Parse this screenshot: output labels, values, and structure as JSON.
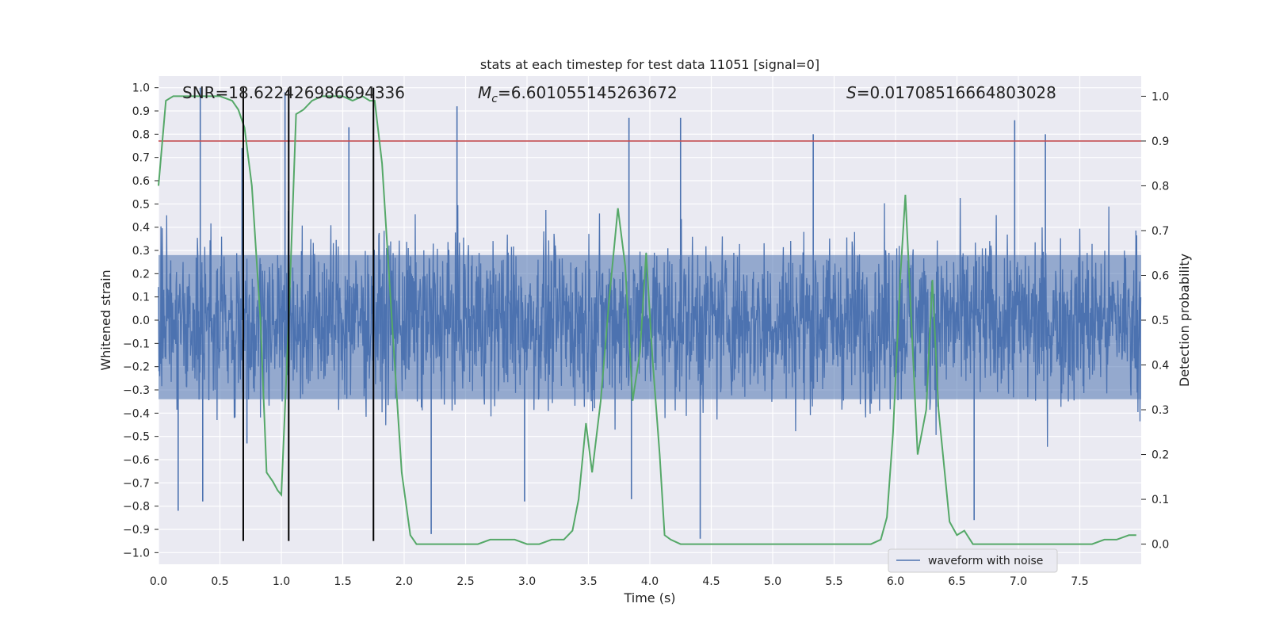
{
  "chart_data": {
    "type": "line",
    "title": "stats at each timestep for test data 11051 [signal=0]",
    "xlabel": "Time (s)",
    "ylabel_left": "Whitened strain",
    "ylabel_right": "Detection probability",
    "xlim": [
      0.0,
      8.0
    ],
    "ylim_left": [
      -1.05,
      1.05
    ],
    "ylim_right": [
      -0.045,
      1.045
    ],
    "xticks": [
      "0.0",
      "0.5",
      "1.0",
      "1.5",
      "2.0",
      "2.5",
      "3.0",
      "3.5",
      "4.0",
      "4.5",
      "5.0",
      "5.5",
      "6.0",
      "6.5",
      "7.0",
      "7.5"
    ],
    "yticks_left": [
      "1.0",
      "0.9",
      "0.8",
      "0.7",
      "0.6",
      "0.5",
      "0.4",
      "0.3",
      "0.2",
      "0.1",
      "0.0",
      "−0.1",
      "−0.2",
      "−0.3",
      "−0.4",
      "−0.5",
      "−0.6",
      "−0.7",
      "−0.8",
      "−0.9",
      "−1.0"
    ],
    "yticks_right": [
      "1.0",
      "0.9",
      "0.8",
      "0.7",
      "0.6",
      "0.5",
      "0.4",
      "0.3",
      "0.2",
      "0.1",
      "0.0"
    ],
    "annotations": {
      "snr": "SNR=18.622426986694336",
      "mc_symbol": "M",
      "mc_sub": "c",
      "mc_value": "=6.601055145263672",
      "s_symbol": "S",
      "s_value": "=0.01708516664803028"
    },
    "legend": {
      "label": "waveform with noise",
      "placement": "lower right"
    },
    "threshold": {
      "axis": "right",
      "value": 0.9,
      "color": "#c44e52"
    },
    "vertical_markers": [
      0.69,
      1.06,
      1.75
    ],
    "vertical_marker_range": [
      -0.95,
      1.0
    ],
    "series": [
      {
        "name": "waveform with noise",
        "axis": "left",
        "color": "#4c72b0",
        "kind": "noise",
        "duration": 8.0,
        "envelope": 0.36,
        "seed": 11051,
        "spikes": [
          {
            "t": 0.34,
            "v": 1.0
          },
          {
            "t": 0.68,
            "v": 0.74
          },
          {
            "t": 0.72,
            "v": -0.53
          },
          {
            "t": 1.03,
            "v": 0.98
          },
          {
            "t": 1.55,
            "v": 0.83
          },
          {
            "t": 1.75,
            "v": 0.99
          },
          {
            "t": 2.22,
            "v": -0.92
          },
          {
            "t": 2.43,
            "v": 0.92
          },
          {
            "t": 3.83,
            "v": 0.87
          },
          {
            "t": 4.25,
            "v": 0.87
          },
          {
            "t": 4.41,
            "v": -0.94
          },
          {
            "t": 5.33,
            "v": 0.8
          },
          {
            "t": 6.97,
            "v": 0.86
          },
          {
            "t": 7.22,
            "v": 0.8
          },
          {
            "t": 6.64,
            "v": -0.86
          },
          {
            "t": 0.16,
            "v": -0.82
          },
          {
            "t": 0.36,
            "v": -0.78
          },
          {
            "t": 2.98,
            "v": -0.78
          },
          {
            "t": 3.85,
            "v": -0.77
          }
        ]
      },
      {
        "name": "detection probability",
        "axis": "right",
        "color": "#55a868",
        "x": [
          0.0,
          0.06,
          0.12,
          0.2,
          0.3,
          0.4,
          0.5,
          0.6,
          0.65,
          0.7,
          0.76,
          0.83,
          0.88,
          0.93,
          0.97,
          1.0,
          1.06,
          1.12,
          1.18,
          1.25,
          1.33,
          1.4,
          1.5,
          1.58,
          1.66,
          1.72,
          1.76,
          1.82,
          1.9,
          1.98,
          2.05,
          2.1,
          2.2,
          2.4,
          2.6,
          2.7,
          2.8,
          2.9,
          3.0,
          3.1,
          3.2,
          3.3,
          3.37,
          3.42,
          3.48,
          3.53,
          3.6,
          3.67,
          3.74,
          3.8,
          3.86,
          3.92,
          3.97,
          4.02,
          4.08,
          4.12,
          4.17,
          4.25,
          4.4,
          5.0,
          5.6,
          5.8,
          5.88,
          5.93,
          5.98,
          6.04,
          6.08,
          6.12,
          6.18,
          6.25,
          6.3,
          6.35,
          6.44,
          6.5,
          6.56,
          6.63,
          6.7,
          7.0,
          7.4,
          7.6,
          7.7,
          7.8,
          7.9,
          7.96
        ],
        "y": [
          0.8,
          0.99,
          1.0,
          1.0,
          1.0,
          1.0,
          1.0,
          0.99,
          0.97,
          0.93,
          0.8,
          0.5,
          0.16,
          0.14,
          0.12,
          0.11,
          0.5,
          0.96,
          0.97,
          0.99,
          1.0,
          1.0,
          1.0,
          0.99,
          1.0,
          0.99,
          0.99,
          0.85,
          0.5,
          0.16,
          0.02,
          0.0,
          0.0,
          0.0,
          0.0,
          0.01,
          0.01,
          0.01,
          0.0,
          0.0,
          0.01,
          0.01,
          0.03,
          0.1,
          0.27,
          0.16,
          0.32,
          0.55,
          0.75,
          0.62,
          0.32,
          0.43,
          0.65,
          0.42,
          0.2,
          0.02,
          0.01,
          0.0,
          0.0,
          0.0,
          0.0,
          0.0,
          0.01,
          0.06,
          0.25,
          0.6,
          0.78,
          0.55,
          0.2,
          0.3,
          0.59,
          0.3,
          0.05,
          0.02,
          0.03,
          0.0,
          0.0,
          0.0,
          0.0,
          0.0,
          0.01,
          0.01,
          0.02,
          0.02
        ]
      }
    ]
  }
}
